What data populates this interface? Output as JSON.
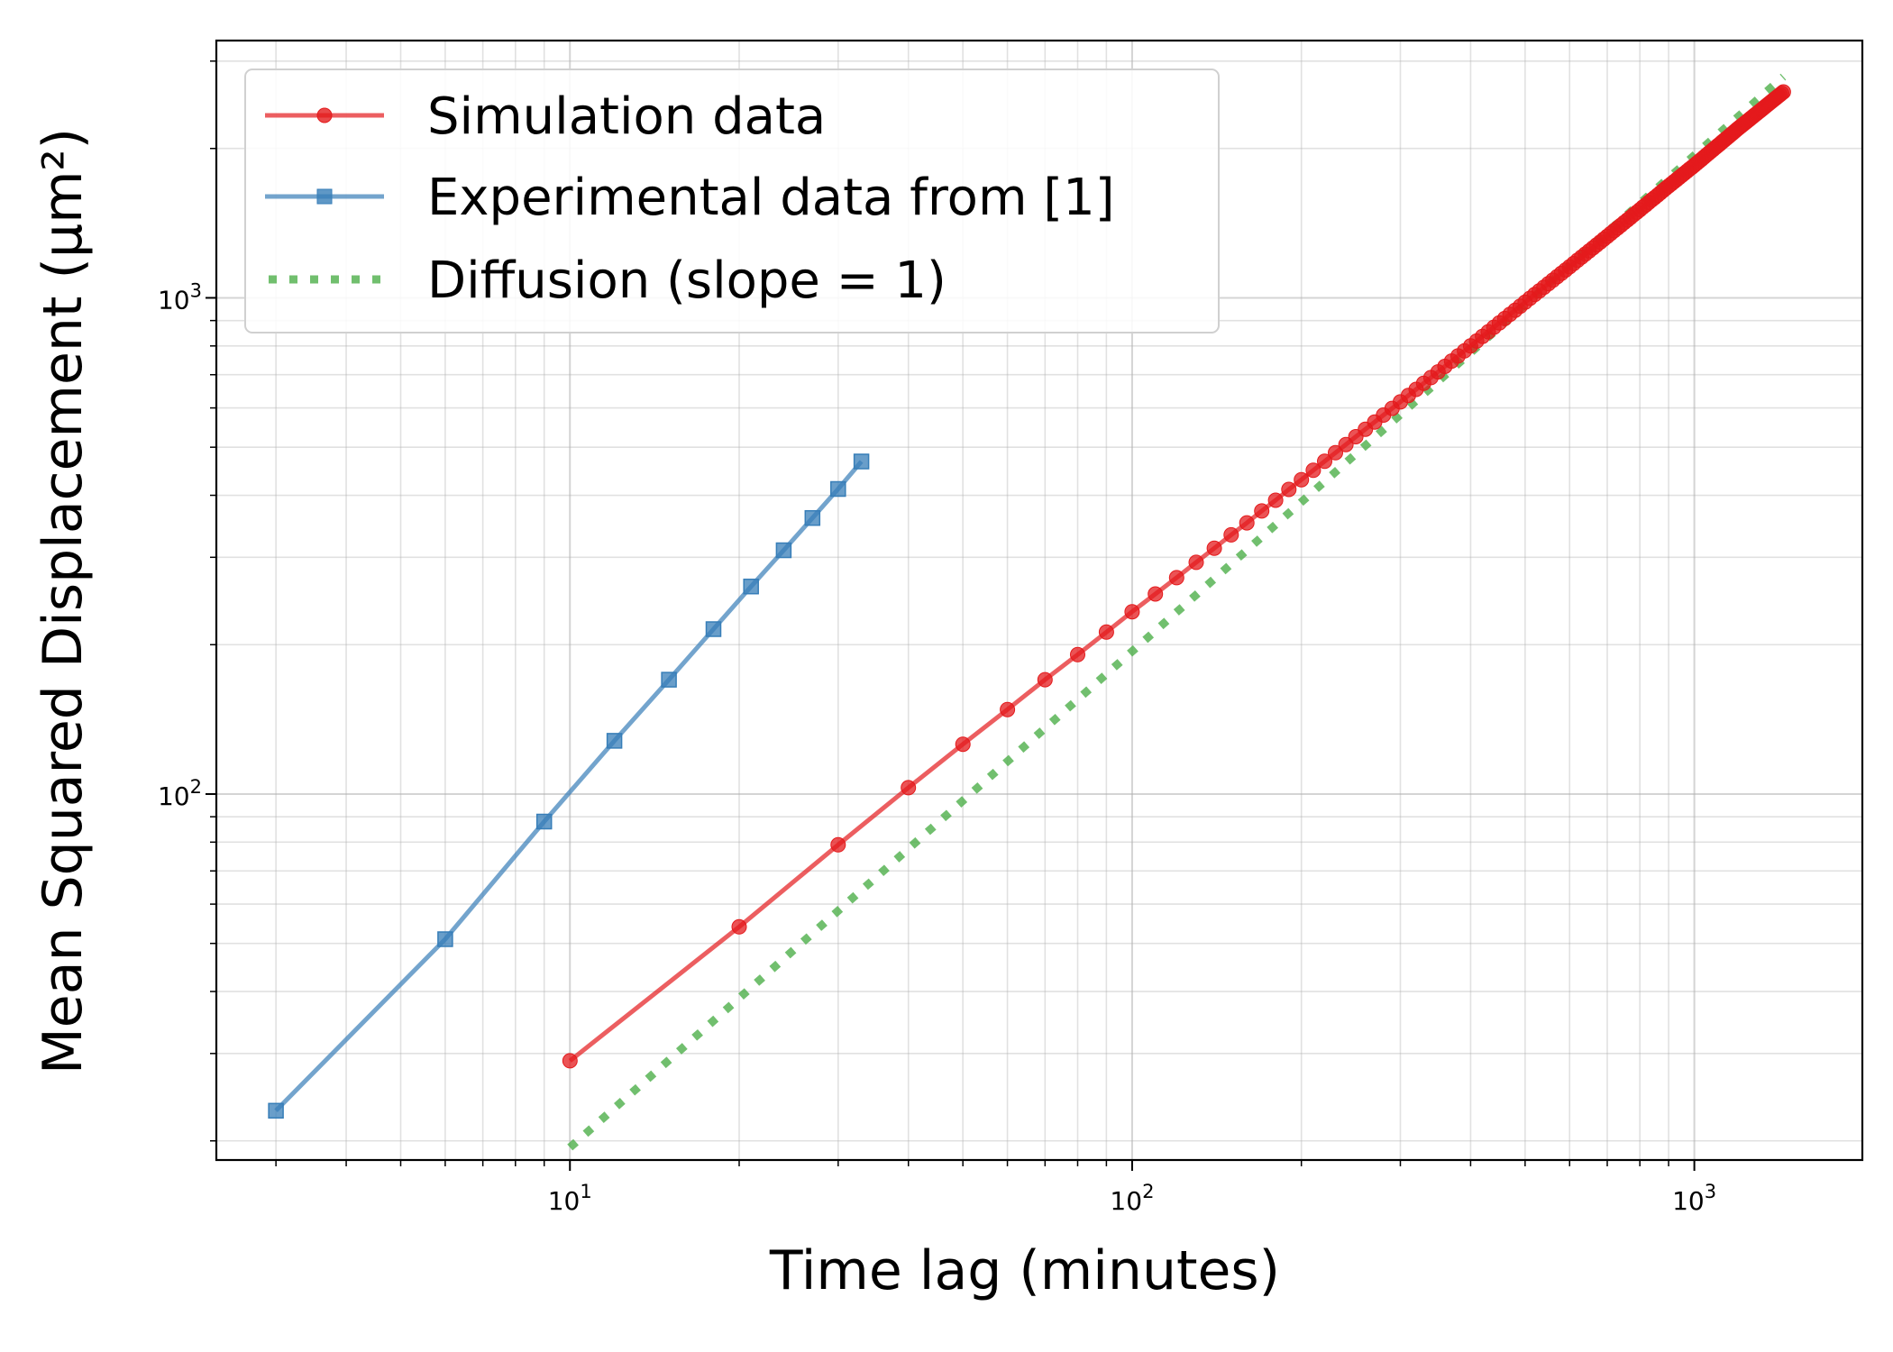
{
  "chart_data": {
    "type": "line",
    "title": "",
    "xlabel": "Time lag (minutes)",
    "ylabel": "Mean Squared Displacement (µm²)",
    "xscale": "log",
    "yscale": "log",
    "xlim": [
      2.35,
      1990
    ],
    "ylim": [
      18.3,
      3300
    ],
    "grid": "both (major and minor)",
    "legend_position": "top-left",
    "x_tick_labels": [
      {
        "base": "10",
        "exp": "1",
        "value": 10
      },
      {
        "base": "10",
        "exp": "2",
        "value": 100
      },
      {
        "base": "10",
        "exp": "3",
        "value": 1000
      }
    ],
    "y_tick_labels": [
      {
        "base": "10",
        "exp": "2",
        "value": 100
      },
      {
        "base": "10",
        "exp": "3",
        "value": 1000
      }
    ],
    "series": [
      {
        "name": "Simulation data",
        "color": "#e41a1c",
        "marker": "circle",
        "line": "solid",
        "sim_x_min": 10,
        "sim_x_max": 1440,
        "sim_x_step": 10,
        "points": [
          [
            10,
            29
          ],
          [
            20,
            54
          ],
          [
            30,
            79
          ],
          [
            40,
            103
          ],
          [
            50,
            126
          ],
          [
            60,
            148
          ],
          [
            70,
            170
          ],
          [
            80,
            191
          ],
          [
            90,
            212
          ],
          [
            100,
            233
          ],
          [
            110,
            253
          ],
          [
            120,
            273
          ],
          [
            130,
            293
          ],
          [
            140,
            313
          ],
          [
            150,
            333
          ],
          [
            160,
            352
          ],
          [
            170,
            372
          ],
          [
            180,
            391
          ],
          [
            190,
            411
          ],
          [
            200,
            430
          ],
          [
            250,
            525
          ],
          [
            300,
            617
          ],
          [
            400,
            800
          ],
          [
            500,
            980
          ],
          [
            600,
            1155
          ],
          [
            700,
            1330
          ],
          [
            800,
            1505
          ],
          [
            900,
            1680
          ],
          [
            1000,
            1850
          ],
          [
            1200,
            2200
          ],
          [
            1440,
            2600
          ]
        ]
      },
      {
        "name": "Experimental data from [1]",
        "color": "#377eb8",
        "marker": "square",
        "line": "solid",
        "points": [
          [
            3,
            23
          ],
          [
            6,
            51
          ],
          [
            9,
            88
          ],
          [
            12,
            128
          ],
          [
            15,
            170
          ],
          [
            18,
            215
          ],
          [
            21,
            262
          ],
          [
            24,
            310
          ],
          [
            27,
            360
          ],
          [
            30,
            412
          ],
          [
            33,
            468
          ]
        ]
      },
      {
        "name": "Diffusion (slope = 1)",
        "color": "#4daf4a",
        "marker": "none",
        "line": "dotted",
        "points": [
          [
            10,
            19.4
          ],
          [
            1440,
            2790
          ]
        ]
      }
    ]
  }
}
